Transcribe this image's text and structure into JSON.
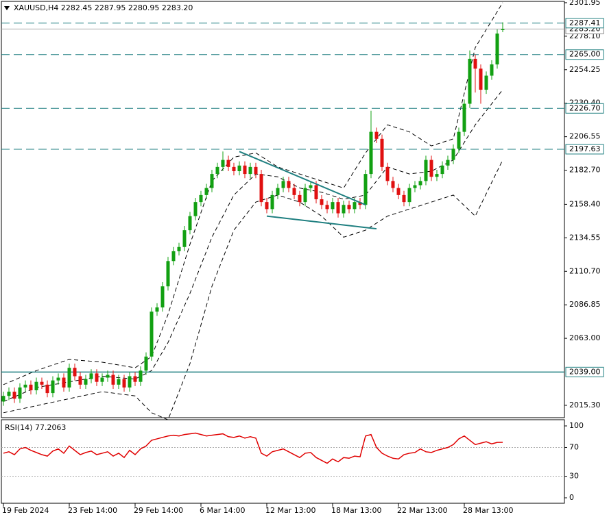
{
  "chart_data": [
    {
      "type": "candlestick",
      "header": "XAUUSD,H4  2282.45 2287.95 2280.95 2283.20",
      "up_color": "#12a012",
      "down_color": "#e01010",
      "open": [
        2018,
        2022,
        2025,
        2020,
        2028,
        2030,
        2026,
        2032,
        2030,
        2024,
        2033,
        2035,
        2028,
        2042,
        2036,
        2030,
        2034,
        2038,
        2032,
        2035,
        2037,
        2030,
        2034,
        2028,
        2036,
        2032,
        2040,
        2050,
        2082,
        2085,
        2100,
        2118,
        2125,
        2128,
        2140,
        2150,
        2160,
        2165,
        2170,
        2180,
        2185,
        2190,
        2185,
        2182,
        2186,
        2180,
        2185,
        2180,
        2160,
        2155,
        2165,
        2170,
        2175,
        2170,
        2165,
        2160,
        2170,
        2172,
        2162,
        2158,
        2155,
        2160,
        2152,
        2158,
        2155,
        2160,
        2158,
        2180,
        2210,
        2205,
        2185,
        2175,
        2170,
        2165,
        2160,
        2170,
        2172,
        2175,
        2190,
        2178,
        2180,
        2186,
        2190,
        2198,
        2210,
        2230,
        2262,
        2255,
        2240,
        2250,
        2258,
        2282.45
      ],
      "high": [
        2025,
        2028,
        2028,
        2031,
        2033,
        2033,
        2035,
        2035,
        2033,
        2036,
        2038,
        2038,
        2045,
        2045,
        2039,
        2037,
        2041,
        2041,
        2038,
        2040,
        2040,
        2037,
        2037,
        2039,
        2039,
        2043,
        2053,
        2085,
        2088,
        2103,
        2121,
        2128,
        2131,
        2143,
        2153,
        2163,
        2168,
        2173,
        2183,
        2188,
        2196,
        2193,
        2188,
        2189,
        2189,
        2188,
        2188,
        2183,
        2163,
        2168,
        2173,
        2178,
        2178,
        2173,
        2168,
        2173,
        2175,
        2175,
        2165,
        2161,
        2163,
        2163,
        2161,
        2161,
        2163,
        2163,
        2183,
        2225,
        2213,
        2208,
        2188,
        2178,
        2173,
        2168,
        2173,
        2175,
        2178,
        2193,
        2193,
        2183,
        2189,
        2193,
        2201,
        2213,
        2233,
        2268,
        2265,
        2258,
        2253,
        2261,
        2283,
        2287.95
      ],
      "low": [
        2015,
        2019,
        2017,
        2017,
        2025,
        2023,
        2023,
        2027,
        2021,
        2021,
        2030,
        2025,
        2025,
        2033,
        2027,
        2027,
        2031,
        2029,
        2029,
        2032,
        2027,
        2027,
        2025,
        2025,
        2029,
        2029,
        2037,
        2047,
        2079,
        2082,
        2097,
        2115,
        2122,
        2125,
        2137,
        2147,
        2157,
        2162,
        2167,
        2177,
        2182,
        2182,
        2179,
        2179,
        2177,
        2177,
        2177,
        2157,
        2152,
        2152,
        2162,
        2167,
        2167,
        2162,
        2157,
        2157,
        2167,
        2159,
        2155,
        2152,
        2152,
        2149,
        2149,
        2152,
        2152,
        2155,
        2155,
        2177,
        2202,
        2182,
        2172,
        2167,
        2162,
        2157,
        2157,
        2167,
        2169,
        2172,
        2175,
        2175,
        2177,
        2183,
        2187,
        2195,
        2207,
        2227,
        2238,
        2230,
        2237,
        2247,
        2255,
        2280.95
      ],
      "close": [
        2022,
        2025,
        2020,
        2028,
        2030,
        2026,
        2032,
        2030,
        2024,
        2033,
        2035,
        2028,
        2042,
        2036,
        2030,
        2034,
        2038,
        2032,
        2035,
        2037,
        2030,
        2034,
        2028,
        2036,
        2032,
        2040,
        2050,
        2082,
        2085,
        2100,
        2118,
        2125,
        2128,
        2140,
        2150,
        2160,
        2165,
        2170,
        2180,
        2185,
        2190,
        2185,
        2182,
        2186,
        2180,
        2185,
        2180,
        2160,
        2155,
        2165,
        2170,
        2175,
        2170,
        2165,
        2160,
        2170,
        2172,
        2162,
        2158,
        2155,
        2160,
        2152,
        2158,
        2155,
        2160,
        2158,
        2180,
        2210,
        2205,
        2185,
        2175,
        2170,
        2165,
        2160,
        2170,
        2172,
        2175,
        2190,
        2178,
        2180,
        2186,
        2190,
        2198,
        2210,
        2230,
        2262,
        2255,
        2240,
        2250,
        2258,
        2280,
        2283.2
      ],
      "bands": {
        "color": "#000000",
        "x": [
          0,
          6,
          12,
          18,
          24,
          27,
          30,
          34,
          38,
          42,
          46,
          50,
          54,
          58,
          62,
          66,
          70,
          74,
          78,
          82,
          86,
          91
        ],
        "upper": [
          2030,
          2040,
          2048,
          2046,
          2042,
          2050,
          2080,
          2130,
          2175,
          2192,
          2195,
          2185,
          2180,
          2175,
          2170,
          2195,
          2215,
          2210,
          2200,
          2205,
          2270,
          2302
        ],
        "middle": [
          2018,
          2028,
          2032,
          2036,
          2034,
          2040,
          2060,
          2095,
          2135,
          2165,
          2180,
          2178,
          2170,
          2167,
          2162,
          2165,
          2185,
          2180,
          2182,
          2190,
          2215,
          2240
        ],
        "lower": [
          2010,
          2015,
          2020,
          2025,
          2022,
          2010,
          2005,
          2045,
          2100,
          2140,
          2160,
          2165,
          2160,
          2150,
          2135,
          2140,
          2150,
          2155,
          2160,
          2165,
          2150,
          2190
        ]
      },
      "trendlines": [
        {
          "x": [
            43,
            66
          ],
          "y": [
            2196,
            2158
          ]
        },
        {
          "x": [
            48,
            68
          ],
          "y": [
            2150,
            2141
          ]
        }
      ],
      "level_color": "#1f7f80",
      "levels": [
        2287.41,
        {
          "value": 2265,
          "label": "2265.00"
        },
        {
          "value": 2226.7,
          "label": "2226.70"
        },
        2197.63
      ],
      "support": {
        "value": 2039,
        "label": "2039.00"
      },
      "price_line": {
        "value": 2283.2,
        "label": "2283.20"
      },
      "ylim": [
        2006.5,
        2302.9
      ],
      "yticks": [
        2301.95,
        {
          "value": 2278.1,
          "label": "2278.10"
        },
        2254.25,
        {
          "value": 2230.4,
          "label": "2230.40"
        },
        2206.55,
        {
          "value": 2182.7,
          "label": "2182.70"
        },
        {
          "value": 2158.4,
          "label": "2158.40"
        },
        2134.55,
        {
          "value": 2110.7,
          "label": "2110.70"
        },
        2086.85,
        {
          "value": 2063,
          "label": "2063.00"
        },
        {
          "value": 2015.3,
          "label": "2015.30"
        }
      ],
      "xticks": [
        {
          "value": 0,
          "label": "19 Feb 2024"
        },
        {
          "value": 12,
          "label": "23 Feb 14:00"
        },
        {
          "value": 24,
          "label": "29 Feb 14:00"
        },
        {
          "value": 36,
          "label": "6 Mar 14:00"
        },
        {
          "value": 48,
          "label": "12 Mar 13:00"
        },
        {
          "value": 60,
          "label": "18 Mar 13:00"
        },
        {
          "value": 72,
          "label": "22 Mar 13:00"
        },
        {
          "value": 84,
          "label": "28 Mar 13:00"
        }
      ]
    },
    {
      "type": "line",
      "title": "RSI(14) 77.2063",
      "color": "#e00000",
      "values": [
        62,
        64,
        60,
        68,
        70,
        66,
        63,
        60,
        58,
        65,
        68,
        62,
        72,
        66,
        60,
        63,
        65,
        60,
        62,
        64,
        58,
        62,
        56,
        66,
        60,
        68,
        72,
        80,
        82,
        84,
        86,
        87,
        86,
        88,
        89,
        90,
        88,
        86,
        87,
        88,
        89,
        85,
        84,
        86,
        83,
        85,
        83,
        62,
        58,
        64,
        66,
        68,
        64,
        60,
        56,
        62,
        63,
        56,
        52,
        48,
        54,
        50,
        56,
        55,
        58,
        57,
        86,
        88,
        70,
        62,
        58,
        55,
        54,
        60,
        62,
        63,
        68,
        64,
        63,
        66,
        68,
        70,
        74,
        82,
        86,
        80,
        74,
        76,
        78,
        75,
        77,
        77.2063
      ],
      "levels": [
        70,
        30
      ],
      "ylim": [
        -7.6,
        108.6
      ],
      "yticks": [
        100,
        70,
        30,
        0
      ]
    }
  ]
}
